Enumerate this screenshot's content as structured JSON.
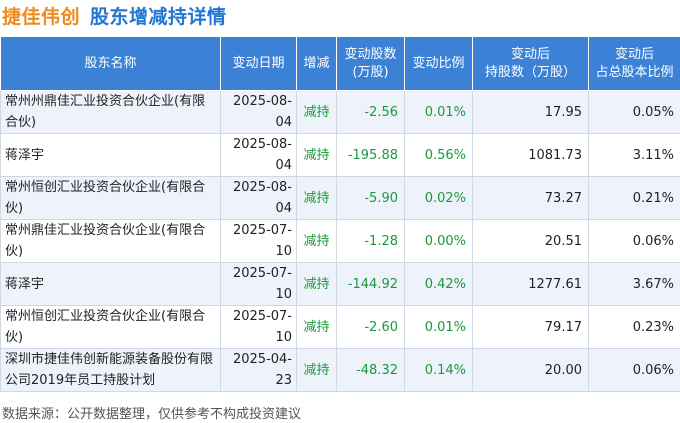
{
  "header": {
    "company": "捷佳伟创",
    "title": "股东增减持详情"
  },
  "table": {
    "columns": [
      "股东名称",
      "变动日期",
      "增减",
      "变动股数\n(万股)",
      "变动比例",
      "变动后\n持股数（万股）",
      "变动后\n占总股本比例"
    ],
    "rows": [
      {
        "name": "常州州鼎佳汇业投资合伙企业(有限合伙)",
        "date": "2025-08-04",
        "type": "减持",
        "shares": "-2.56",
        "ratio": "0.01%",
        "after_shares": "17.95",
        "after_ratio": "0.05%"
      },
      {
        "name": "蒋泽宇",
        "date": "2025-08-04",
        "type": "减持",
        "shares": "-195.88",
        "ratio": "0.56%",
        "after_shares": "1081.73",
        "after_ratio": "3.11%"
      },
      {
        "name": "常州恒创汇业投资合伙企业(有限合伙)",
        "date": "2025-08-04",
        "type": "减持",
        "shares": "-5.90",
        "ratio": "0.02%",
        "after_shares": "73.27",
        "after_ratio": "0.21%"
      },
      {
        "name": "常州鼎佳汇业投资合伙企业(有限合伙)",
        "date": "2025-07-10",
        "type": "减持",
        "shares": "-1.28",
        "ratio": "0.00%",
        "after_shares": "20.51",
        "after_ratio": "0.06%"
      },
      {
        "name": "蒋泽宇",
        "date": "2025-07-10",
        "type": "减持",
        "shares": "-144.92",
        "ratio": "0.42%",
        "after_shares": "1277.61",
        "after_ratio": "3.67%"
      },
      {
        "name": "常州恒创汇业投资合伙企业(有限合伙)",
        "date": "2025-07-10",
        "type": "减持",
        "shares": "-2.60",
        "ratio": "0.01%",
        "after_shares": "79.17",
        "after_ratio": "0.23%"
      },
      {
        "name": "深圳市捷佳伟创新能源装备股份有限公司2019年员工持股计划",
        "date": "2025-04-23",
        "type": "减持",
        "shares": "-48.32",
        "ratio": "0.14%",
        "after_shares": "20.00",
        "after_ratio": "0.06%"
      }
    ]
  },
  "footer": {
    "source": "数据来源：公开数据整理，仅供参考不构成投资建议"
  },
  "colors": {
    "company_title": "#ef8a1e",
    "main_title": "#2176d2",
    "header_bg": "#3b82d6",
    "reduce_green": "#1a9a3a",
    "stripe": "#eef3fb"
  }
}
